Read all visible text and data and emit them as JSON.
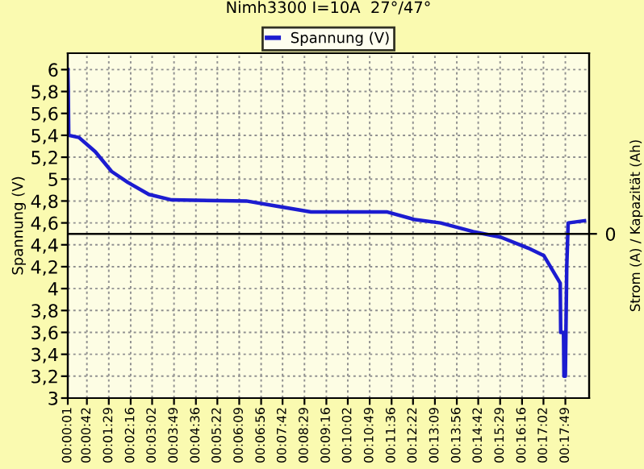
{
  "chart_data": {
    "type": "line",
    "title": "Nimh3300 I=10A  27°/47°",
    "ylabel": "Spannung (V)",
    "y2label": "Strom (A) / Kapazität (Ah)",
    "series": [
      {
        "name": "Spannung (V)",
        "color": "#1c1cd0",
        "x": [
          1,
          2,
          3,
          25,
          60,
          95,
          130,
          175,
          224,
          384,
          454,
          523,
          687,
          746,
          801,
          871,
          930,
          989,
          1023,
          1051,
          1058,
          1059,
          1065,
          1066,
          1069,
          1072,
          1075,
          1110
        ],
        "values": [
          6.0,
          5.8,
          5.4,
          5.38,
          5.25,
          5.07,
          4.97,
          4.86,
          4.81,
          4.8,
          4.75,
          4.7,
          4.7,
          4.63,
          4.6,
          4.52,
          4.47,
          4.37,
          4.3,
          4.1,
          4.05,
          3.6,
          3.6,
          3.2,
          3.2,
          4.2,
          4.6,
          4.62
        ]
      }
    ],
    "xlim": [
      1,
      1120
    ],
    "xticks": [
      {
        "value": 1,
        "label": "00:00:01"
      },
      {
        "value": 42,
        "label": "00:00:42"
      },
      {
        "value": 89,
        "label": "00:01:29"
      },
      {
        "value": 136,
        "label": "00:02:16"
      },
      {
        "value": 182,
        "label": "00:03:02"
      },
      {
        "value": 229,
        "label": "00:03:49"
      },
      {
        "value": 276,
        "label": "00:04:36"
      },
      {
        "value": 322,
        "label": "00:05:22"
      },
      {
        "value": 369,
        "label": "00:06:09"
      },
      {
        "value": 416,
        "label": "00:06:56"
      },
      {
        "value": 462,
        "label": "00:07:42"
      },
      {
        "value": 509,
        "label": "00:08:29"
      },
      {
        "value": 556,
        "label": "00:09:16"
      },
      {
        "value": 602,
        "label": "00:10:02"
      },
      {
        "value": 649,
        "label": "00:10:49"
      },
      {
        "value": 696,
        "label": "00:11:36"
      },
      {
        "value": 742,
        "label": "00:12:22"
      },
      {
        "value": 789,
        "label": "00:13:09"
      },
      {
        "value": 836,
        "label": "00:13:56"
      },
      {
        "value": 882,
        "label": "00:14:42"
      },
      {
        "value": 929,
        "label": "00:15:29"
      },
      {
        "value": 976,
        "label": "00:16:16"
      },
      {
        "value": 1022,
        "label": "00:17:02"
      },
      {
        "value": 1069,
        "label": "00:17:49"
      }
    ],
    "ylim": [
      3,
      6.15
    ],
    "yticks": [
      3,
      {
        "value": 3.2,
        "label": "3,2"
      },
      {
        "value": 3.4,
        "label": "3,4"
      },
      {
        "value": 3.6,
        "label": "3,6"
      },
      {
        "value": 3.8,
        "label": "3,8"
      },
      4,
      {
        "value": 4.2,
        "label": "4,2"
      },
      {
        "value": 4.4,
        "label": "4,4"
      },
      {
        "value": 4.6,
        "label": "4,6"
      },
      {
        "value": 4.8,
        "label": "4,8"
      },
      5,
      {
        "value": 5.2,
        "label": "5,2"
      },
      {
        "value": 5.4,
        "label": "5,4"
      },
      {
        "value": 5.6,
        "label": "5,6"
      },
      {
        "value": 5.8,
        "label": "5,8"
      },
      6
    ],
    "ref_lines": [
      {
        "axis": "y",
        "value": 4.5,
        "color": "#000000"
      }
    ],
    "annotations": [
      "0"
    ],
    "grid": true,
    "legend": "top",
    "line_style": "solid",
    "marker": "none"
  }
}
